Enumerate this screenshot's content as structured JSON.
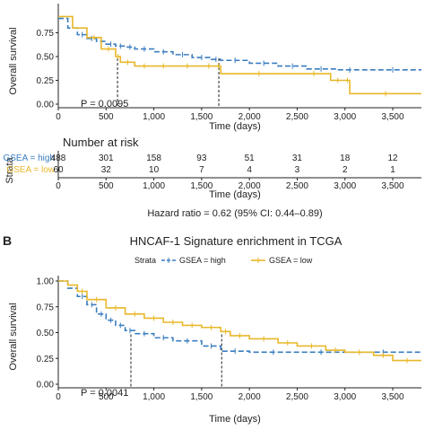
{
  "colors": {
    "high": "#3a7dc0",
    "low": "#e8b82a",
    "axis": "#222222"
  },
  "chart_data": [
    {
      "type": "line",
      "subtype": "kaplan-meier",
      "ylabel": "Overall survival",
      "xlabel": "Time (days)",
      "xlim": [
        0,
        3800
      ],
      "ylim": [
        0,
        1
      ],
      "yticks": [
        "0.00",
        "0.25",
        "0.50",
        "0.75"
      ],
      "xticks": [
        "0",
        "500",
        "1,000",
        "1,500",
        "2,000",
        "2,500",
        "3,000",
        "3,500"
      ],
      "xtick_values": [
        0,
        500,
        1000,
        1500,
        2000,
        2500,
        3000,
        3500
      ],
      "ytick_values": [
        0,
        0.25,
        0.5,
        0.75
      ],
      "pvalue": "P = 0.0095",
      "series": [
        {
          "name": "GSEA = high",
          "color_key": "high",
          "dashed": true,
          "x": [
            0,
            100,
            200,
            300,
            400,
            500,
            600,
            700,
            800,
            1000,
            1200,
            1400,
            1600,
            1700,
            2000,
            2300,
            2600,
            2900,
            3200,
            3800
          ],
          "y": [
            0.9,
            0.8,
            0.73,
            0.69,
            0.66,
            0.63,
            0.61,
            0.6,
            0.58,
            0.55,
            0.52,
            0.49,
            0.47,
            0.46,
            0.43,
            0.4,
            0.37,
            0.36,
            0.36,
            0.36
          ]
        },
        {
          "name": "GSEA = low",
          "color_key": "low",
          "dashed": false,
          "x": [
            0,
            150,
            300,
            450,
            600,
            650,
            800,
            1000,
            1200,
            1500,
            1650,
            1700,
            2500,
            2850,
            3000,
            3050,
            3800
          ],
          "y": [
            0.92,
            0.8,
            0.7,
            0.58,
            0.5,
            0.44,
            0.4,
            0.4,
            0.4,
            0.4,
            0.4,
            0.32,
            0.32,
            0.25,
            0.25,
            0.11,
            0.11
          ]
        }
      ],
      "median_markers": [
        620,
        1680
      ]
    },
    {
      "type": "table",
      "title": "Number at risk",
      "strata_label": "Strata",
      "xlabel": "Time (days)",
      "xticks": [
        "0",
        "500",
        "1,000",
        "1,500",
        "2,000",
        "2,500",
        "3,000",
        "3,500"
      ],
      "rows": [
        {
          "label": "GSEA = high",
          "color_key": "high",
          "values": [
            "488",
            "301",
            "158",
            "93",
            "51",
            "31",
            "18",
            "12"
          ]
        },
        {
          "label": "GSEA = low",
          "color_key": "low",
          "values": [
            "60",
            "32",
            "10",
            "7",
            "4",
            "3",
            "2",
            "1"
          ]
        }
      ],
      "hazard_ratio": "Hazard ratio = 0.62 (95% CI: 0.44–0.89)"
    },
    {
      "type": "line",
      "subtype": "kaplan-meier",
      "panel_letter": "B",
      "title": "HNCAF-1 Signature enrichment in TCGA",
      "legend_title": "Strata",
      "legend_position": "top",
      "ylabel": "Overall survival",
      "xlabel": "Time (days)",
      "xlim": [
        0,
        3800
      ],
      "ylim": [
        0,
        1
      ],
      "yticks": [
        "0.00",
        "0.25",
        "0.50",
        "0.75",
        "1.00"
      ],
      "ytick_values": [
        0,
        0.25,
        0.5,
        0.75,
        1.0
      ],
      "xticks": [
        "0",
        "500",
        "1,000",
        "1,500",
        "2,000",
        "2,500",
        "3,000",
        "3,500"
      ],
      "xtick_values": [
        0,
        500,
        1000,
        1500,
        2000,
        2500,
        3000,
        3500
      ],
      "pvalue": "P = 0.0041",
      "series": [
        {
          "name": "GSEA = high",
          "color_key": "high",
          "dashed": true,
          "x": [
            0,
            100,
            200,
            300,
            400,
            500,
            600,
            700,
            800,
            1000,
            1200,
            1500,
            1700,
            2000,
            2500,
            3000,
            3800
          ],
          "y": [
            1.0,
            0.93,
            0.85,
            0.77,
            0.68,
            0.62,
            0.57,
            0.52,
            0.49,
            0.45,
            0.42,
            0.37,
            0.32,
            0.31,
            0.31,
            0.31,
            0.31
          ]
        },
        {
          "name": "GSEA = low",
          "color_key": "low",
          "dashed": false,
          "x": [
            0,
            100,
            200,
            300,
            500,
            700,
            900,
            1100,
            1300,
            1500,
            1700,
            1800,
            2000,
            2300,
            2500,
            2800,
            3000,
            3300,
            3500,
            3800
          ],
          "y": [
            1.0,
            0.96,
            0.9,
            0.82,
            0.74,
            0.68,
            0.64,
            0.6,
            0.57,
            0.55,
            0.51,
            0.47,
            0.44,
            0.4,
            0.37,
            0.33,
            0.31,
            0.28,
            0.23,
            0.23
          ]
        }
      ],
      "median_markers": [
        760,
        1710
      ]
    }
  ]
}
